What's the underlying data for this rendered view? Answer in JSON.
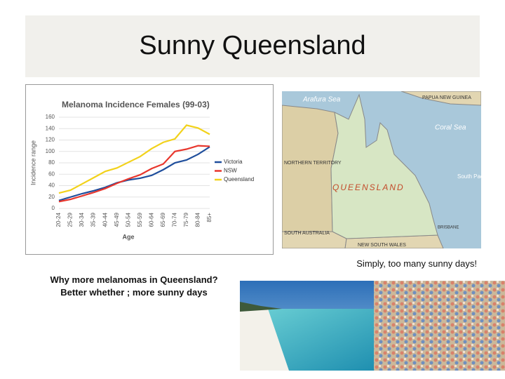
{
  "header": {
    "title": "Sunny Queensland"
  },
  "chart_data": {
    "type": "line",
    "title": "Melanoma Incidence Females (99-03)",
    "x_label": "Age",
    "y_label": "Incidence range",
    "categories": [
      "20-24",
      "25-29",
      "30-34",
      "35-39",
      "40-44",
      "45-49",
      "50-54",
      "55-59",
      "60-64",
      "65-69",
      "70-74",
      "75-79",
      "80-84",
      "85+"
    ],
    "series": [
      {
        "name": "Victoria",
        "color": "#1f4e9c",
        "values": [
          14,
          20,
          26,
          31,
          37,
          45,
          50,
          53,
          58,
          68,
          80,
          85,
          95,
          108
        ]
      },
      {
        "name": "NSW",
        "color": "#e8362c",
        "values": [
          12,
          16,
          22,
          28,
          35,
          44,
          52,
          59,
          70,
          78,
          100,
          104,
          110,
          109
        ]
      },
      {
        "name": "Queensland",
        "color": "#f2d21b",
        "values": [
          27,
          32,
          43,
          54,
          65,
          71,
          81,
          91,
          105,
          116,
          122,
          146,
          141,
          130
        ]
      }
    ],
    "ylim": [
      0,
      160
    ],
    "yticks": [
      0,
      20,
      40,
      60,
      80,
      100,
      120,
      140,
      160
    ],
    "grid": true,
    "legend": "right"
  },
  "map": {
    "labels": [
      "Arafura Sea",
      "PAPUA NEW GUINEA",
      "Coral Sea",
      "NORTHERN TERRITORY",
      "QUEENSLAND",
      "South Pacific Ocean",
      "SOUTH AUSTRALIA",
      "NEW SOUTH WALES",
      "BRISBANE"
    ]
  },
  "map_caption": "Simply, too many sunny days!",
  "question": {
    "lines": [
      "Why more melanomas in Queensland?",
      "Better whether ; more sunny days"
    ]
  }
}
